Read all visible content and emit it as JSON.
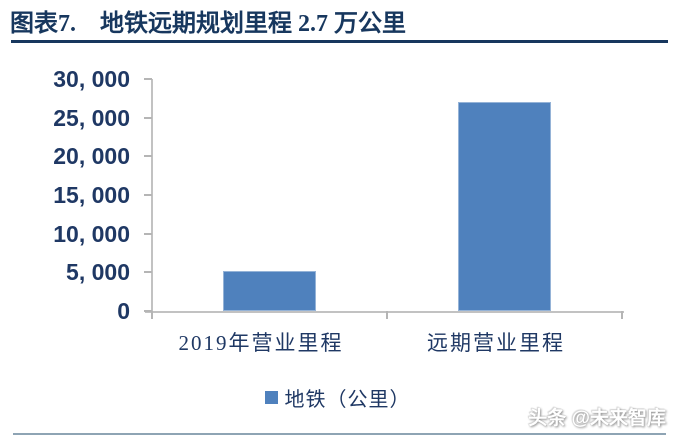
{
  "header": {
    "prefix": "图表7.",
    "title": "地铁远期规划里程 2.7 万公里"
  },
  "chart_data": {
    "type": "bar",
    "title": "地铁远期规划里程 2.7 万公里",
    "categories": [
      "2019年营业里程",
      "远期营业里程"
    ],
    "series": [
      {
        "name": "地铁（公里）",
        "values": [
          5200,
          27000
        ]
      }
    ],
    "xlabel": "",
    "ylabel": "",
    "ylim": [
      0,
      30000
    ],
    "y_ticks": [
      0,
      5000,
      10000,
      15000,
      20000,
      25000,
      30000
    ],
    "y_tick_labels": [
      "0",
      "5, 000",
      "10, 000",
      "15, 000",
      "20, 000",
      "25, 000",
      "30, 000"
    ],
    "grid": false,
    "legend_position": "bottom",
    "bar_color": "#4F81BD",
    "bar_border_color": "#95B3D7"
  },
  "watermark": {
    "text": "头条 @未来智库"
  },
  "colors": {
    "title_navy": "#17375E",
    "text_navy": "#1F3864",
    "bar_blue": "#4F81BD",
    "axis_gray": "#C2C2C2",
    "bottom_rule": "#8EA4B4"
  }
}
